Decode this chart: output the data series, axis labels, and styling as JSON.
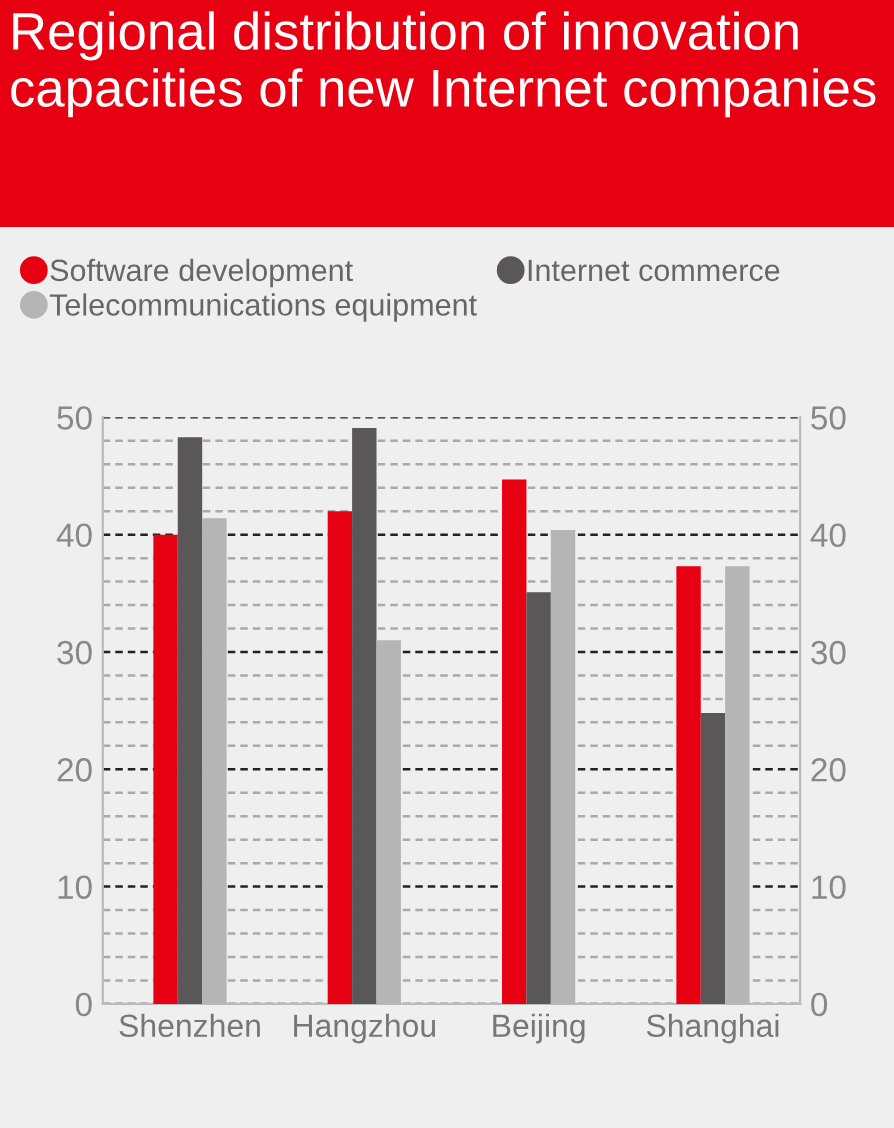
{
  "chart_data": {
    "type": "bar",
    "title": "Regional distribution of innovation capacities of new Internet companies",
    "categories": [
      "Shenzhen",
      "Hangzhou",
      "Beijing",
      "Shanghai"
    ],
    "series": [
      {
        "name": "Software development",
        "color": "#e60012",
        "values": [
          40,
          42,
          44.7,
          37.3
        ]
      },
      {
        "name": "Internet commerce",
        "color": "#595757",
        "values": [
          48.3,
          49.1,
          35.1,
          24.8
        ]
      },
      {
        "name": "Telecommunications equipment",
        "color": "#b5b5b5",
        "values": [
          41.4,
          31.0,
          40.4,
          37.3
        ]
      }
    ],
    "ylim": [
      0,
      50
    ],
    "yticks": [
      0,
      {
        "value": 2,
        "label": null
      },
      {
        "value": 4,
        "label": null
      },
      {
        "value": 6,
        "label": null
      },
      {
        "value": 8,
        "label": null
      },
      10,
      {
        "value": 12,
        "label": null
      },
      {
        "value": 14,
        "label": null
      },
      {
        "value": 16,
        "label": null
      },
      {
        "value": 18,
        "label": null
      },
      20,
      {
        "value": 22,
        "label": null
      },
      {
        "value": 24,
        "label": null
      },
      {
        "value": 26,
        "label": null
      },
      {
        "value": 28,
        "label": null
      },
      30,
      {
        "value": 32,
        "label": null
      },
      {
        "value": 34,
        "label": null
      },
      {
        "value": 36,
        "label": null
      },
      {
        "value": 38,
        "label": null
      },
      40,
      {
        "value": 42,
        "label": null
      },
      {
        "value": 44,
        "label": null
      },
      {
        "value": 46,
        "label": null
      },
      {
        "value": 48,
        "label": null
      },
      50
    ],
    "y2lim": [
      0,
      50
    ],
    "y2ticks": [
      0,
      10,
      20,
      30,
      40,
      50
    ],
    "grid": "y",
    "legend": "top",
    "marker": "circle"
  }
}
